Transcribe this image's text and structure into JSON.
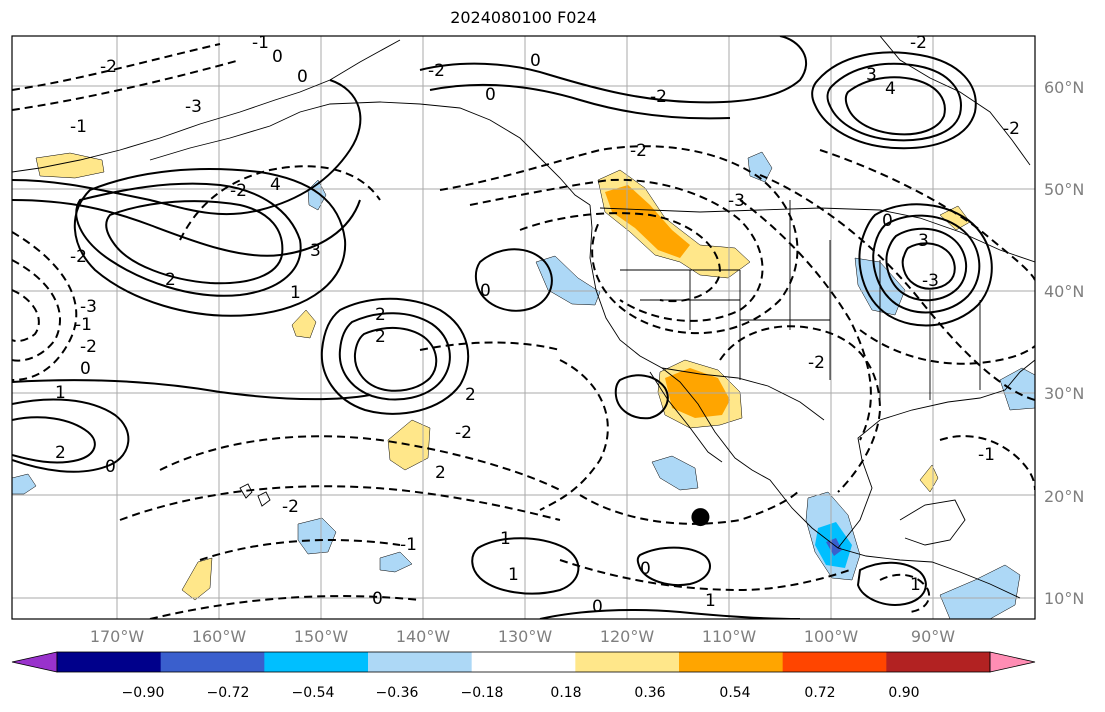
{
  "title": "2024080100 F024",
  "latitude_labels": [
    "10°N",
    "20°N",
    "30°N",
    "40°N",
    "50°N",
    "60°N"
  ],
  "longitude_labels": [
    "170°W",
    "160°W",
    "150°W",
    "140°W",
    "130°W",
    "120°W",
    "110°W",
    "100°W",
    "90°W"
  ],
  "colorbar": {
    "tick_labels": [
      "−0.90",
      "−0.72",
      "−0.54",
      "−0.36",
      "−0.18",
      "0.18",
      "0.36",
      "0.54",
      "0.72",
      "0.90"
    ],
    "colors": [
      "#9932cc",
      "#00008b",
      "#3a5fcd",
      "#00bfff",
      "#add8f6",
      "#ffffff",
      "#ffe78a",
      "#ffa500",
      "#ff4500",
      "#b22222",
      "#ff8db4"
    ]
  },
  "contour_labels": [
    "-2",
    "-1",
    "0",
    "-3",
    "-1",
    "0",
    "-3",
    "-2",
    "-2",
    "-1",
    "0",
    "1",
    "0",
    "2",
    "-2",
    "4",
    "2",
    "3",
    "1",
    "2",
    "0",
    "2",
    "-3",
    "-2",
    "-2",
    "0",
    "0",
    "-2",
    "-2",
    "3",
    "4",
    "-2",
    "0",
    "3",
    "-3",
    "-2",
    "-2",
    "2",
    "-1",
    "1",
    "1",
    "-1",
    "0",
    "0",
    "1",
    "0",
    "1",
    "-2",
    "2"
  ],
  "marker": {
    "lon": -112.8,
    "lat": 17.9
  }
}
